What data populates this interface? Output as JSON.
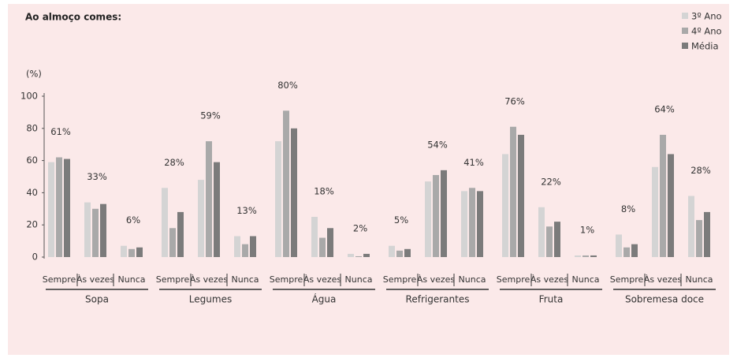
{
  "chart_data": {
    "type": "bar",
    "title": "Ao almoço comes:",
    "y_unit": "(%)",
    "groups": [
      "Sopa",
      "Legumes",
      "Água",
      "Refrigerantes",
      "Fruta",
      "Sobremesa doce"
    ],
    "categories": [
      "Sempre",
      "Às vezes",
      "Nunca",
      "Sempre",
      "Às vezes",
      "Nunca",
      "Sempre",
      "Às vezes",
      "Nunca",
      "Sempre",
      "Às vezes",
      "Nunca",
      "Sempre",
      "Às vezes",
      "Nunca",
      "Sempre",
      "Às vezes",
      "Nunca"
    ],
    "series": [
      {
        "name": "3º Ano",
        "color": "#d4d4d4",
        "values": [
          59,
          34,
          7,
          43,
          48,
          13,
          72,
          25,
          2,
          7,
          47,
          41,
          64,
          31,
          1,
          14,
          56,
          38
        ]
      },
      {
        "name": "4º Ano",
        "color": "#a9a9a9",
        "values": [
          62,
          30,
          5,
          18,
          72,
          8,
          91,
          12,
          0.5,
          4,
          51,
          43,
          81,
          19,
          1,
          6,
          76,
          23
        ]
      },
      {
        "name": "Média",
        "color": "#7b7b7b",
        "values": [
          61,
          33,
          6,
          28,
          59,
          13,
          80,
          18,
          2,
          5,
          54,
          41,
          76,
          22,
          1,
          8,
          64,
          28
        ],
        "value_labels": [
          "61%",
          "33%",
          "6%",
          "28%",
          "59%",
          "13%",
          "80%",
          "18%",
          "2%",
          "5%",
          "54%",
          "41%",
          "76%",
          "22%",
          "1%",
          "8%",
          "64%",
          "28%"
        ]
      }
    ],
    "ylim": [
      0,
      100
    ],
    "yticks": [
      0,
      20,
      40,
      60,
      80,
      100
    ],
    "grid": false,
    "legend": "top-right"
  }
}
